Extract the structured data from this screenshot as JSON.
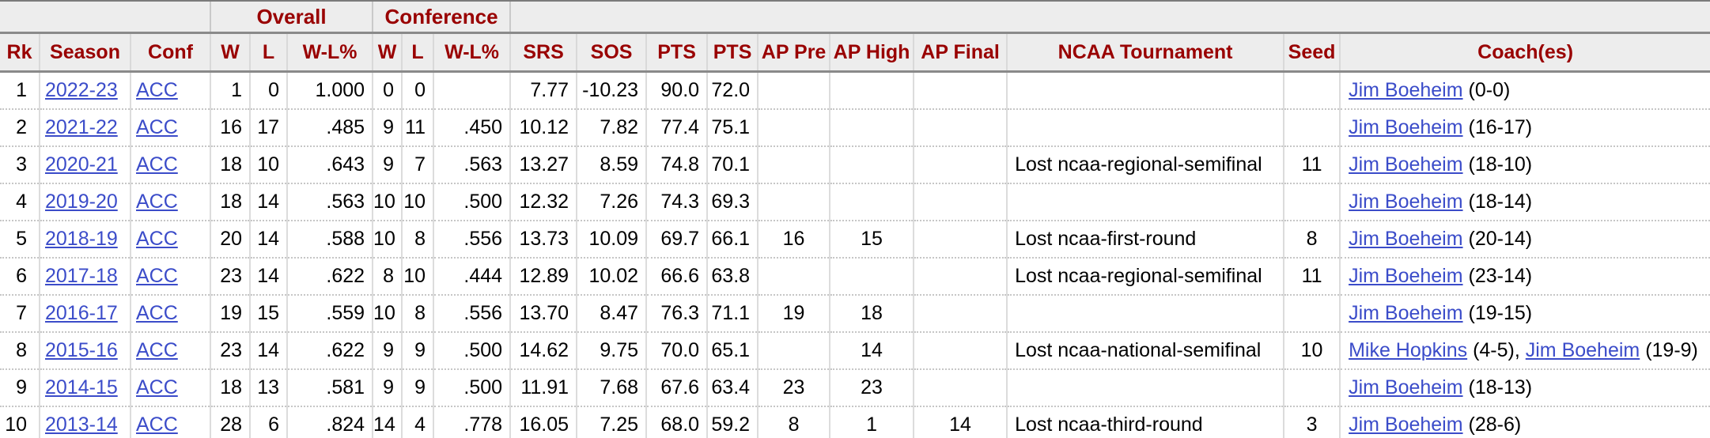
{
  "colors": {
    "header_bg": "#ededed",
    "header_text": "#990000",
    "link_blue": "#3b4cc9",
    "border_dark": "#8a8a8a",
    "border_light": "#dcdcdc",
    "row_separator_dotted": "#c6c6c6"
  },
  "table": {
    "group_headers": {
      "left_blank": "",
      "overall": "Overall",
      "conference": "Conference",
      "right_blank": ""
    },
    "columns": [
      "Rk",
      "Season",
      "Conf",
      "W",
      "L",
      "W-L%",
      "W",
      "L",
      "W-L%",
      "SRS",
      "SOS",
      "PTS",
      "PTS",
      "AP Pre",
      "AP High",
      "AP Final",
      "NCAA Tournament",
      "Seed",
      "Coach(es)"
    ],
    "rows": [
      {
        "rk": "1",
        "season": "2022-23",
        "conf": "ACC",
        "w": "1",
        "l": "0",
        "wl_pct": "1.000",
        "cw": "0",
        "cl": "0",
        "cwl_pct": "",
        "srs": "7.77",
        "sos": "-10.23",
        "pts": "90.0",
        "opp_pts": "72.0",
        "ap_pre": "",
        "ap_high": "",
        "ap_final": "",
        "ncaa": "",
        "seed": "",
        "coaches": [
          {
            "text": "Jim Boeheim",
            "link": true
          },
          {
            "text": " (0-0)",
            "link": false
          }
        ]
      },
      {
        "rk": "2",
        "season": "2021-22",
        "conf": "ACC",
        "w": "16",
        "l": "17",
        "wl_pct": ".485",
        "cw": "9",
        "cl": "11",
        "cwl_pct": ".450",
        "srs": "10.12",
        "sos": "7.82",
        "pts": "77.4",
        "opp_pts": "75.1",
        "ap_pre": "",
        "ap_high": "",
        "ap_final": "",
        "ncaa": "",
        "seed": "",
        "coaches": [
          {
            "text": "Jim Boeheim",
            "link": true
          },
          {
            "text": " (16-17)",
            "link": false
          }
        ]
      },
      {
        "rk": "3",
        "season": "2020-21",
        "conf": "ACC",
        "w": "18",
        "l": "10",
        "wl_pct": ".643",
        "cw": "9",
        "cl": "7",
        "cwl_pct": ".563",
        "srs": "13.27",
        "sos": "8.59",
        "pts": "74.8",
        "opp_pts": "70.1",
        "ap_pre": "",
        "ap_high": "",
        "ap_final": "",
        "ncaa": "Lost ncaa-regional-semifinal",
        "seed": "11",
        "coaches": [
          {
            "text": "Jim Boeheim",
            "link": true
          },
          {
            "text": " (18-10)",
            "link": false
          }
        ]
      },
      {
        "rk": "4",
        "season": "2019-20",
        "conf": "ACC",
        "w": "18",
        "l": "14",
        "wl_pct": ".563",
        "cw": "10",
        "cl": "10",
        "cwl_pct": ".500",
        "srs": "12.32",
        "sos": "7.26",
        "pts": "74.3",
        "opp_pts": "69.3",
        "ap_pre": "",
        "ap_high": "",
        "ap_final": "",
        "ncaa": "",
        "seed": "",
        "coaches": [
          {
            "text": "Jim Boeheim",
            "link": true
          },
          {
            "text": " (18-14)",
            "link": false
          }
        ]
      },
      {
        "rk": "5",
        "season": "2018-19",
        "conf": "ACC",
        "w": "20",
        "l": "14",
        "wl_pct": ".588",
        "cw": "10",
        "cl": "8",
        "cwl_pct": ".556",
        "srs": "13.73",
        "sos": "10.09",
        "pts": "69.7",
        "opp_pts": "66.1",
        "ap_pre": "16",
        "ap_high": "15",
        "ap_final": "",
        "ncaa": "Lost ncaa-first-round",
        "seed": "8",
        "coaches": [
          {
            "text": "Jim Boeheim",
            "link": true
          },
          {
            "text": " (20-14)",
            "link": false
          }
        ]
      },
      {
        "rk": "6",
        "season": "2017-18",
        "conf": "ACC",
        "w": "23",
        "l": "14",
        "wl_pct": ".622",
        "cw": "8",
        "cl": "10",
        "cwl_pct": ".444",
        "srs": "12.89",
        "sos": "10.02",
        "pts": "66.6",
        "opp_pts": "63.8",
        "ap_pre": "",
        "ap_high": "",
        "ap_final": "",
        "ncaa": "Lost ncaa-regional-semifinal",
        "seed": "11",
        "coaches": [
          {
            "text": "Jim Boeheim",
            "link": true
          },
          {
            "text": " (23-14)",
            "link": false
          }
        ]
      },
      {
        "rk": "7",
        "season": "2016-17",
        "conf": "ACC",
        "w": "19",
        "l": "15",
        "wl_pct": ".559",
        "cw": "10",
        "cl": "8",
        "cwl_pct": ".556",
        "srs": "13.70",
        "sos": "8.47",
        "pts": "76.3",
        "opp_pts": "71.1",
        "ap_pre": "19",
        "ap_high": "18",
        "ap_final": "",
        "ncaa": "",
        "seed": "",
        "coaches": [
          {
            "text": "Jim Boeheim",
            "link": true
          },
          {
            "text": " (19-15)",
            "link": false
          }
        ]
      },
      {
        "rk": "8",
        "season": "2015-16",
        "conf": "ACC",
        "w": "23",
        "l": "14",
        "wl_pct": ".622",
        "cw": "9",
        "cl": "9",
        "cwl_pct": ".500",
        "srs": "14.62",
        "sos": "9.75",
        "pts": "70.0",
        "opp_pts": "65.1",
        "ap_pre": "",
        "ap_high": "14",
        "ap_final": "",
        "ncaa": "Lost ncaa-national-semifinal",
        "seed": "10",
        "coaches": [
          {
            "text": "Mike Hopkins",
            "link": true
          },
          {
            "text": " (4-5), ",
            "link": false
          },
          {
            "text": "Jim Boeheim",
            "link": true
          },
          {
            "text": " (19-9)",
            "link": false
          }
        ]
      },
      {
        "rk": "9",
        "season": "2014-15",
        "conf": "ACC",
        "w": "18",
        "l": "13",
        "wl_pct": ".581",
        "cw": "9",
        "cl": "9",
        "cwl_pct": ".500",
        "srs": "11.91",
        "sos": "7.68",
        "pts": "67.6",
        "opp_pts": "63.4",
        "ap_pre": "23",
        "ap_high": "23",
        "ap_final": "",
        "ncaa": "",
        "seed": "",
        "coaches": [
          {
            "text": "Jim Boeheim",
            "link": true
          },
          {
            "text": " (18-13)",
            "link": false
          }
        ]
      },
      {
        "rk": "10",
        "season": "2013-14",
        "conf": "ACC",
        "w": "28",
        "l": "6",
        "wl_pct": ".824",
        "cw": "14",
        "cl": "4",
        "cwl_pct": ".778",
        "srs": "16.05",
        "sos": "7.25",
        "pts": "68.0",
        "opp_pts": "59.2",
        "ap_pre": "8",
        "ap_high": "1",
        "ap_final": "14",
        "ncaa": "Lost ncaa-third-round",
        "seed": "3",
        "coaches": [
          {
            "text": "Jim Boeheim",
            "link": true
          },
          {
            "text": " (28-6)",
            "link": false
          }
        ]
      }
    ]
  }
}
